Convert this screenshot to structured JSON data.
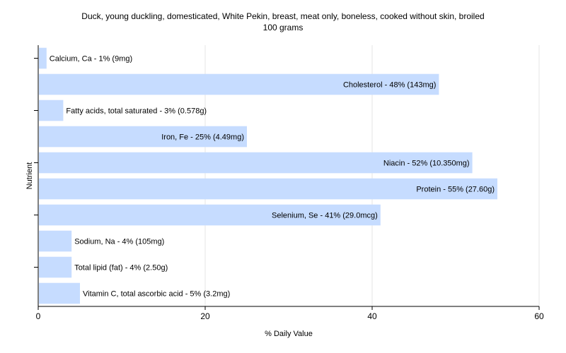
{
  "chart_data": {
    "type": "bar",
    "orientation": "horizontal",
    "title": "Duck, young duckling, domesticated, White Pekin, breast, meat only, boneless, cooked without skin, broiled",
    "subtitle": "100 grams",
    "xlabel": "% Daily Value",
    "ylabel": "Nutrient",
    "xlim": [
      0,
      60
    ],
    "xticks": [
      0,
      20,
      40,
      60
    ],
    "grid": true,
    "bar_color": "#c6dcff",
    "categories": [
      "Calcium, Ca",
      "Cholesterol",
      "Fatty acids, total saturated",
      "Iron, Fe",
      "Niacin",
      "Protein",
      "Selenium, Se",
      "Sodium, Na",
      "Total lipid (fat)",
      "Vitamin C, total ascorbic acid"
    ],
    "values": [
      1,
      48,
      3,
      25,
      52,
      55,
      41,
      4,
      4,
      5
    ],
    "labels": [
      "Calcium, Ca - 1% (9mg)",
      "Cholesterol - 48% (143mg)",
      "Fatty acids, total saturated - 3% (0.578g)",
      "Iron, Fe - 25% (4.49mg)",
      "Niacin - 52% (10.350mg)",
      "Protein - 55% (27.60g)",
      "Selenium, Se - 41% (29.0mcg)",
      "Sodium, Na - 4% (105mg)",
      "Total lipid (fat) - 4% (2.50g)",
      "Vitamin C, total ascorbic acid - 5% (3.2mg)"
    ]
  }
}
